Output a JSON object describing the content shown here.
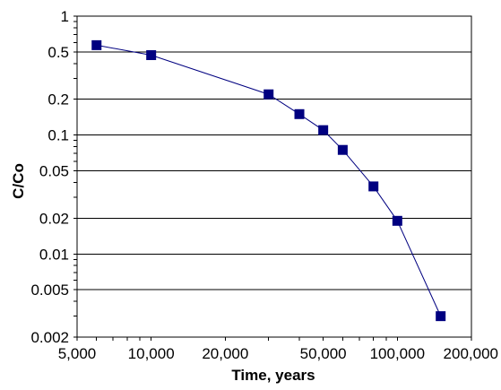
{
  "chart_data": {
    "type": "line",
    "xlabel": "Time, years",
    "ylabel": "C/Co",
    "x_scale": "log",
    "y_scale": "log",
    "xlim": [
      5000,
      200000
    ],
    "ylim": [
      0.002,
      1
    ],
    "x_ticks": [
      5000,
      10000,
      20000,
      50000,
      100000,
      200000
    ],
    "x_tick_labels": [
      "5,000",
      "10,000",
      "20,000",
      "50,000",
      "100,000",
      "200,000"
    ],
    "y_ticks": [
      0.002,
      0.005,
      0.01,
      0.02,
      0.05,
      0.1,
      0.2,
      0.5,
      1
    ],
    "y_tick_labels": [
      "0.002",
      "0.005",
      "0.01",
      "0.02",
      "0.05",
      "0.1",
      "0.2",
      "0.5",
      "1"
    ],
    "grid": "horizontal major gridlines",
    "legend": "none",
    "series": [
      {
        "color": "#000080",
        "marker": "square",
        "points": [
          {
            "x": 6000,
            "y": 0.57
          },
          {
            "x": 10000,
            "y": 0.47
          },
          {
            "x": 30000,
            "y": 0.22
          },
          {
            "x": 40000,
            "y": 0.15
          },
          {
            "x": 50000,
            "y": 0.11
          },
          {
            "x": 60000,
            "y": 0.075
          },
          {
            "x": 80000,
            "y": 0.037
          },
          {
            "x": 100000,
            "y": 0.019
          },
          {
            "x": 150000,
            "y": 0.003
          }
        ]
      }
    ]
  }
}
